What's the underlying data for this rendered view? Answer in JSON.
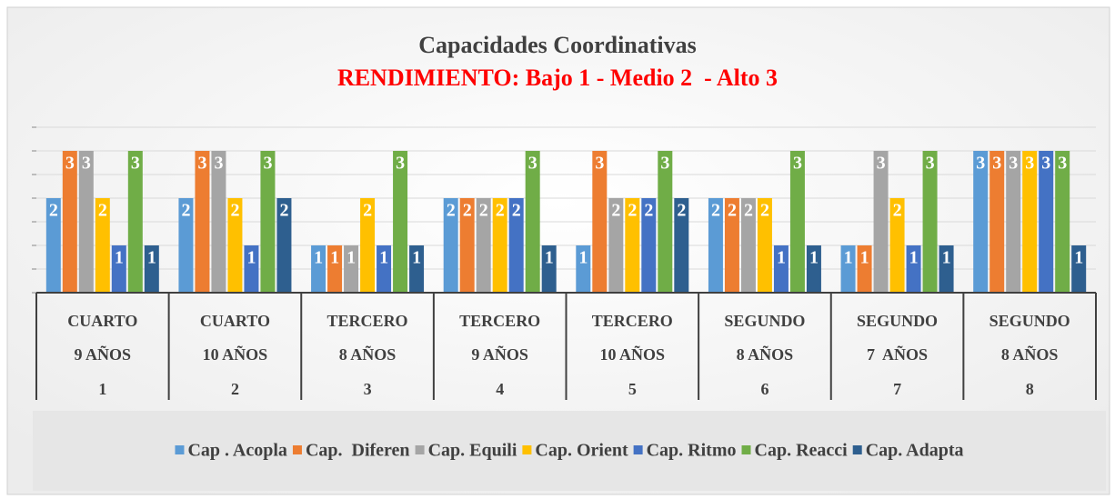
{
  "chart_data": {
    "type": "bar",
    "title": "Capacidades Coordinativas",
    "subtitle": "RENDIMIENTO: Bajo 1 - Medio 2  - Alto 3",
    "categories": [
      [
        "CUARTO",
        "9 AÑOS",
        "1"
      ],
      [
        "CUARTO",
        "10 AÑOS",
        "2"
      ],
      [
        "TERCERO",
        "8 AÑOS",
        "3"
      ],
      [
        "TERCERO",
        "9 AÑOS",
        "4"
      ],
      [
        "TERCERO",
        "10 AÑOS",
        "5"
      ],
      [
        "SEGUNDO",
        "8 AÑOS",
        "6"
      ],
      [
        "SEGUNDO",
        "7  AÑOS",
        "7"
      ],
      [
        "SEGUNDO",
        "8 AÑOS",
        "8"
      ]
    ],
    "series": [
      {
        "name": "Cap . Acopla",
        "color": "#5b9bd5",
        "values": [
          2,
          2,
          1,
          2,
          1,
          2,
          1,
          3
        ]
      },
      {
        "name": "Cap.  Diferen",
        "color": "#ed7d31",
        "values": [
          3,
          3,
          1,
          2,
          3,
          2,
          1,
          3
        ]
      },
      {
        "name": "Cap. Equili",
        "color": "#a5a5a5",
        "values": [
          3,
          3,
          1,
          2,
          2,
          2,
          3,
          3
        ]
      },
      {
        "name": "Cap. Orient",
        "color": "#ffc000",
        "values": [
          2,
          2,
          2,
          2,
          2,
          2,
          2,
          3
        ]
      },
      {
        "name": "Cap. Ritmo",
        "color": "#4472c4",
        "values": [
          1,
          1,
          1,
          2,
          2,
          1,
          1,
          3
        ]
      },
      {
        "name": "Cap. Reacci",
        "color": "#70ad47",
        "values": [
          3,
          3,
          3,
          3,
          3,
          3,
          3,
          3
        ]
      },
      {
        "name": "Cap. Adapta",
        "color": "#2e5f8f",
        "values": [
          1,
          2,
          1,
          1,
          2,
          1,
          1,
          1
        ]
      }
    ],
    "ylim": [
      0,
      3.5
    ],
    "yticks": [
      0,
      0.5,
      1,
      1.5,
      2,
      2.5,
      3,
      3.5
    ],
    "grid": true,
    "legend": "bottom"
  }
}
